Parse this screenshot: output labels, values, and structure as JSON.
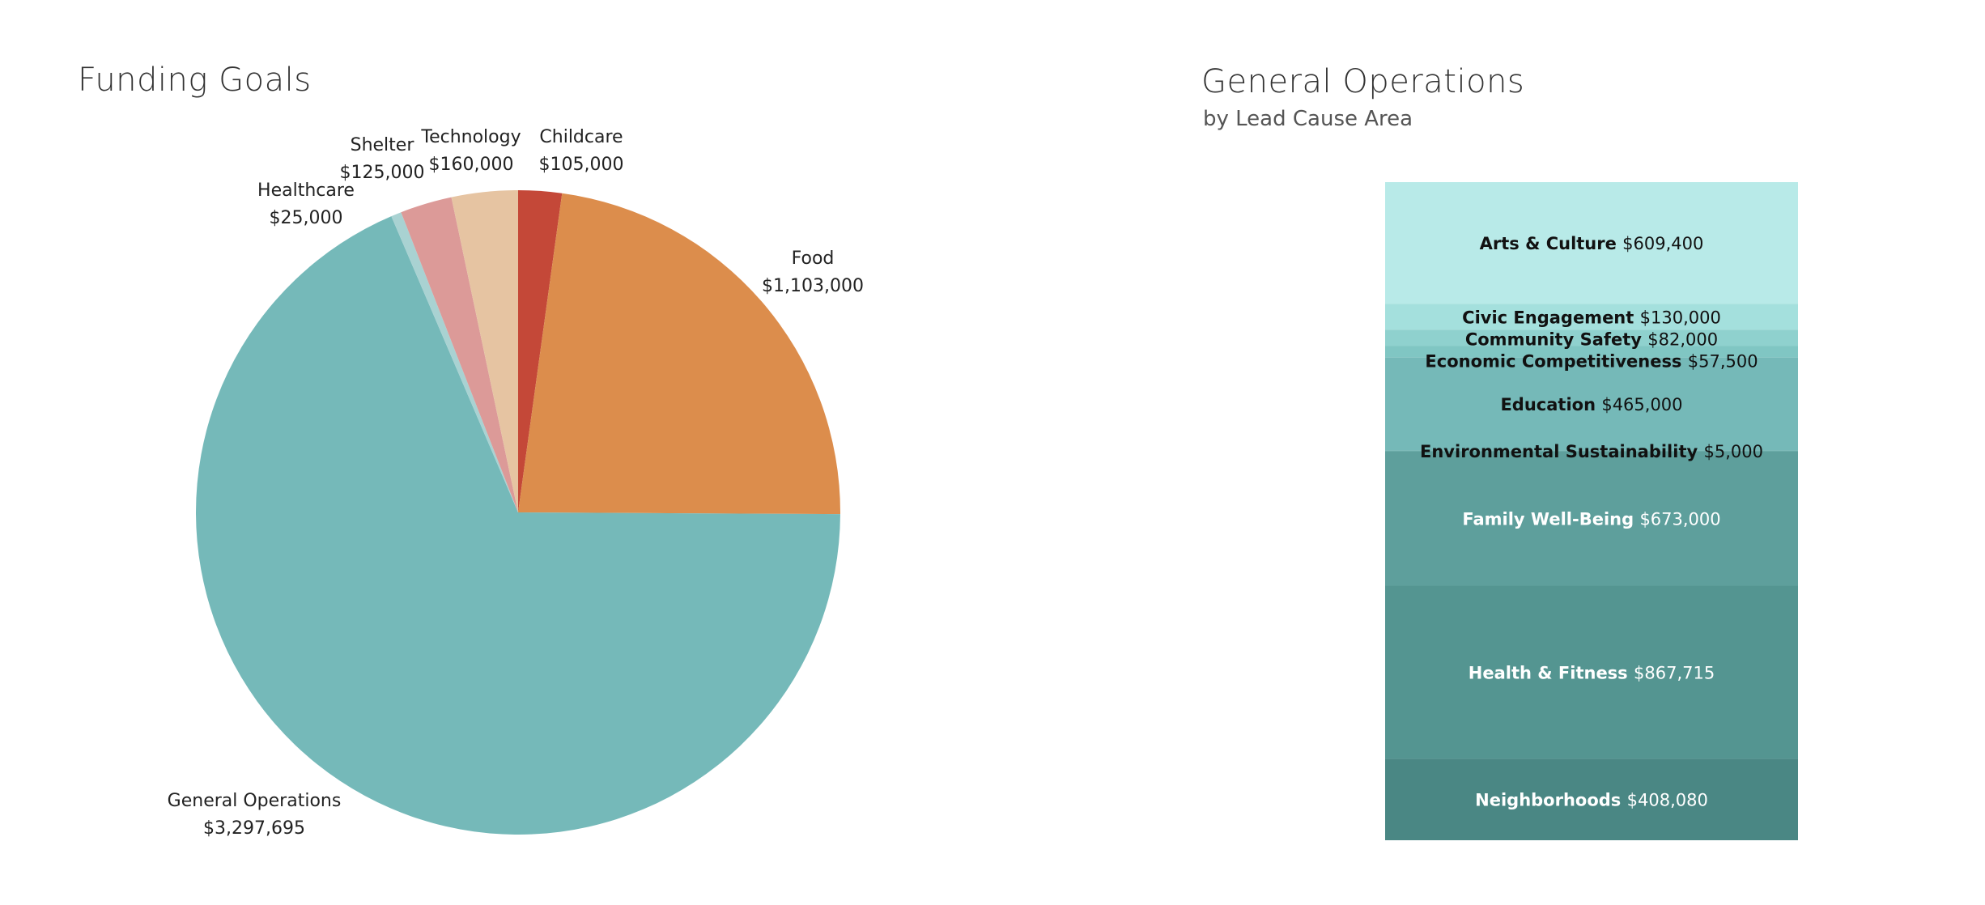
{
  "pie_chart": {
    "title": "Funding Goals"
  },
  "ops_chart": {
    "title": "General Operations",
    "subtitle": "by Lead Cause Area"
  },
  "chart_data": [
    {
      "type": "pie",
      "title": "Funding Goals",
      "slices": [
        {
          "label": "Childcare",
          "value": 105000,
          "display": "$105,000",
          "color": "#c44838"
        },
        {
          "label": "Food",
          "value": 1103000,
          "display": "$1,103,000",
          "color": "#dc8d4c"
        },
        {
          "label": "General Operations",
          "value": 3297695,
          "display": "$3,297,695",
          "color": "#75b9b9"
        },
        {
          "label": "Healthcare",
          "value": 25000,
          "display": "$25,000",
          "color": "#a9d2d2"
        },
        {
          "label": "Shelter",
          "value": 125000,
          "display": "$125,000",
          "color": "#dc9a98"
        },
        {
          "label": "Technology",
          "value": 160000,
          "display": "$160,000",
          "color": "#e6c4a2"
        }
      ]
    },
    {
      "type": "bar",
      "subtype": "stacked",
      "title": "General Operations",
      "subtitle": "by Lead Cause Area",
      "segments": [
        {
          "label": "Arts & Culture",
          "value": 609400,
          "display": "$609,400",
          "color": "#b8eae8",
          "text_color": "#111111"
        },
        {
          "label": "Civic Engagement",
          "value": 130000,
          "display": "$130,000",
          "color": "#a4e0dd",
          "text_color": "#111111"
        },
        {
          "label": "Community Safety",
          "value": 82000,
          "display": "$82,000",
          "color": "#8fd1ce",
          "text_color": "#111111"
        },
        {
          "label": "Economic Competitiveness",
          "value": 57500,
          "display": "$57,500",
          "color": "#80c6c3",
          "text_color": "#111111"
        },
        {
          "label": "Education",
          "value": 465000,
          "display": "$465,000",
          "color": "#75b9b8",
          "text_color": "#111111"
        },
        {
          "label": "Environmental Sustainability",
          "value": 5000,
          "display": "$5,000",
          "color": "#6aaeac",
          "text_color": "#111111"
        },
        {
          "label": "Family Well-Being",
          "value": 673000,
          "display": "$673,000",
          "color": "#5e9f9c",
          "text_color": "#ffffff"
        },
        {
          "label": "Health & Fitness",
          "value": 867715,
          "display": "$867,715",
          "color": "#549591",
          "text_color": "#ffffff"
        },
        {
          "label": "Neighborhoods",
          "value": 408080,
          "display": "$408,080",
          "color": "#4a8784",
          "text_color": "#ffffff"
        }
      ]
    }
  ]
}
